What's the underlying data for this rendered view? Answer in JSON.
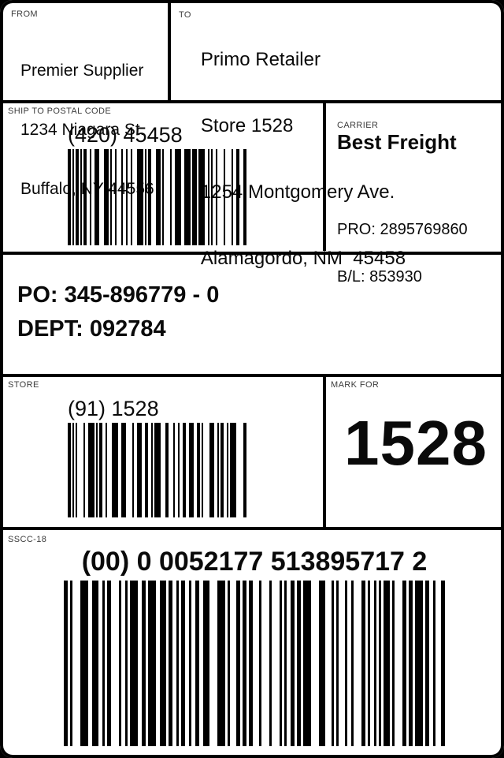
{
  "ship_from": {
    "section_label": "FROM",
    "name": "Premier Supplier",
    "street": "1234 Niagara St.",
    "city_line": "Buffalo, NY 44556"
  },
  "ship_to": {
    "section_label": "TO",
    "name": "Primo Retailer",
    "store_line": "Store 1528",
    "street": "1254 Montgomery Ave.",
    "city_line": "Alamagordo, NM  45458"
  },
  "postal": {
    "section_label": "SHIP TO POSTAL CODE",
    "barcode_text": "(420) 45458"
  },
  "carrier": {
    "section_label": "CARRIER",
    "name": "Best Freight",
    "pro_line": "PRO: 2895769860",
    "bol_line": "B/L: 853930"
  },
  "order": {
    "po_line": "PO: 345-896779 - 0",
    "dept_line": "DEPT: 092784"
  },
  "store": {
    "section_label": "STORE",
    "barcode_text": "(91) 1528"
  },
  "mark_for": {
    "section_label": "MARK FOR",
    "value": "1528"
  },
  "sscc": {
    "section_label": "SSCC-18",
    "barcode_text": "(00) 0 0052177 513895717 2"
  },
  "colors": {
    "ink": "#000000",
    "paper": "#ffffff",
    "section_label_ink": "#3c3c3c"
  }
}
